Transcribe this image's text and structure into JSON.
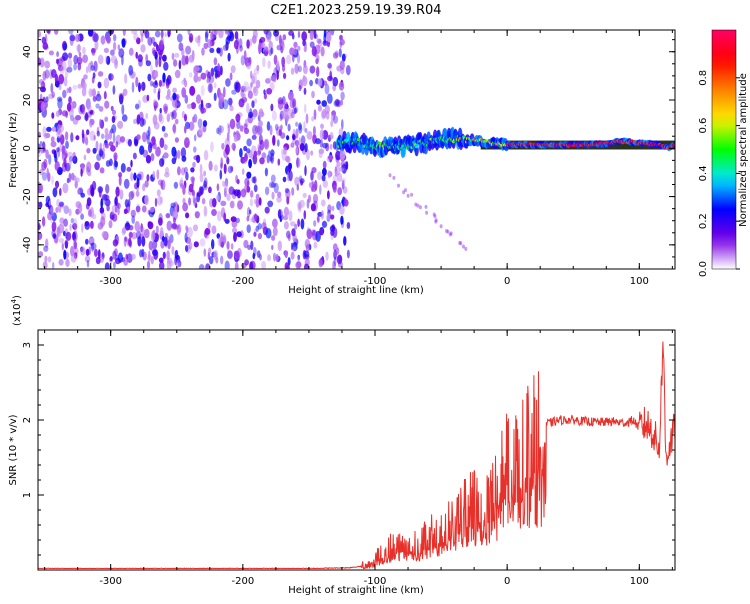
{
  "title": "C2E1.2023.259.19.39.R04",
  "chart_data": [
    {
      "type": "heatmap",
      "xlabel": "Height of straight line (km)",
      "ylabel": "Frequency (Hz)",
      "xlim": [
        -355,
        127
      ],
      "ylim": [
        -50,
        49
      ],
      "xticks": [
        -300,
        -200,
        -100,
        0,
        100
      ],
      "yticks": [
        -40,
        -20,
        0,
        20,
        40
      ],
      "colorbar": {
        "label": "Normalized spectral amplitude",
        "range": [
          0.0,
          1.0
        ],
        "ticks": [
          0.0,
          0.2,
          0.4,
          0.6,
          0.8
        ],
        "tick_labels": [
          "0.0",
          "0.2",
          "0.4",
          "0.6",
          "0.8"
        ],
        "colors": [
          "#ffffff",
          "#7a00e6",
          "#0000ff",
          "#00e5ff",
          "#00ff00",
          "#ffee00",
          "#ff8000",
          "#ff0000",
          "#ff0066"
        ]
      },
      "regions": [
        {
          "description": "broadband noise",
          "x_range": [
            -355,
            -120
          ],
          "y_range": [
            -50,
            49
          ],
          "level_range": [
            0.05,
            0.2
          ]
        },
        {
          "description": "spectral line",
          "x_range": [
            -120,
            127
          ],
          "y_range": [
            -5,
            8
          ],
          "level_range": [
            0.3,
            1.0
          ]
        }
      ],
      "ridge": {
        "x": [
          -128,
          -115,
          -100,
          -85,
          -70,
          -55,
          -40,
          -25,
          -10,
          0,
          20,
          40,
          60,
          75,
          85,
          95,
          105,
          115,
          122,
          127
        ],
        "y": [
          2,
          3,
          1,
          0.5,
          1.5,
          3,
          4,
          3.5,
          2,
          1.5,
          1.5,
          1.5,
          1.5,
          2,
          3,
          2.5,
          2,
          1.5,
          0,
          1.5
        ]
      }
    },
    {
      "type": "line",
      "xlabel": "Height of straight line (km)",
      "ylabel": "SNR (10 * v/v)",
      "y_multiplier": "(x10",
      "y_multiplier_exp": "4",
      "y_multiplier_close": ")",
      "xlim": [
        -355,
        127
      ],
      "ylim": [
        0,
        3.2
      ],
      "xticks": [
        -300,
        -200,
        -100,
        0,
        100
      ],
      "yticks": [
        1,
        2,
        3
      ],
      "color": "#e8302a",
      "series": [
        {
          "x": [
            -355,
            -300,
            -250,
            -200,
            -150,
            -120,
            -105,
            -100,
            -90,
            -80,
            -70,
            -60,
            -50,
            -40,
            -30,
            -20,
            -10,
            0,
            10,
            20,
            30,
            40,
            50,
            60,
            70,
            80,
            90,
            95,
            100,
            105,
            110,
            115,
            118,
            120,
            127
          ],
          "y": [
            0.02,
            0.02,
            0.02,
            0.02,
            0.02,
            0.03,
            0.06,
            0.15,
            0.3,
            0.4,
            0.35,
            0.45,
            0.55,
            0.7,
            0.85,
            1.0,
            1.2,
            1.45,
            1.7,
            1.85,
            1.95,
            2.0,
            2.0,
            1.98,
            1.97,
            1.98,
            1.96,
            2.0,
            1.9,
            1.95,
            1.85,
            1.6,
            3.1,
            1.5,
            1.9
          ]
        }
      ]
    }
  ]
}
